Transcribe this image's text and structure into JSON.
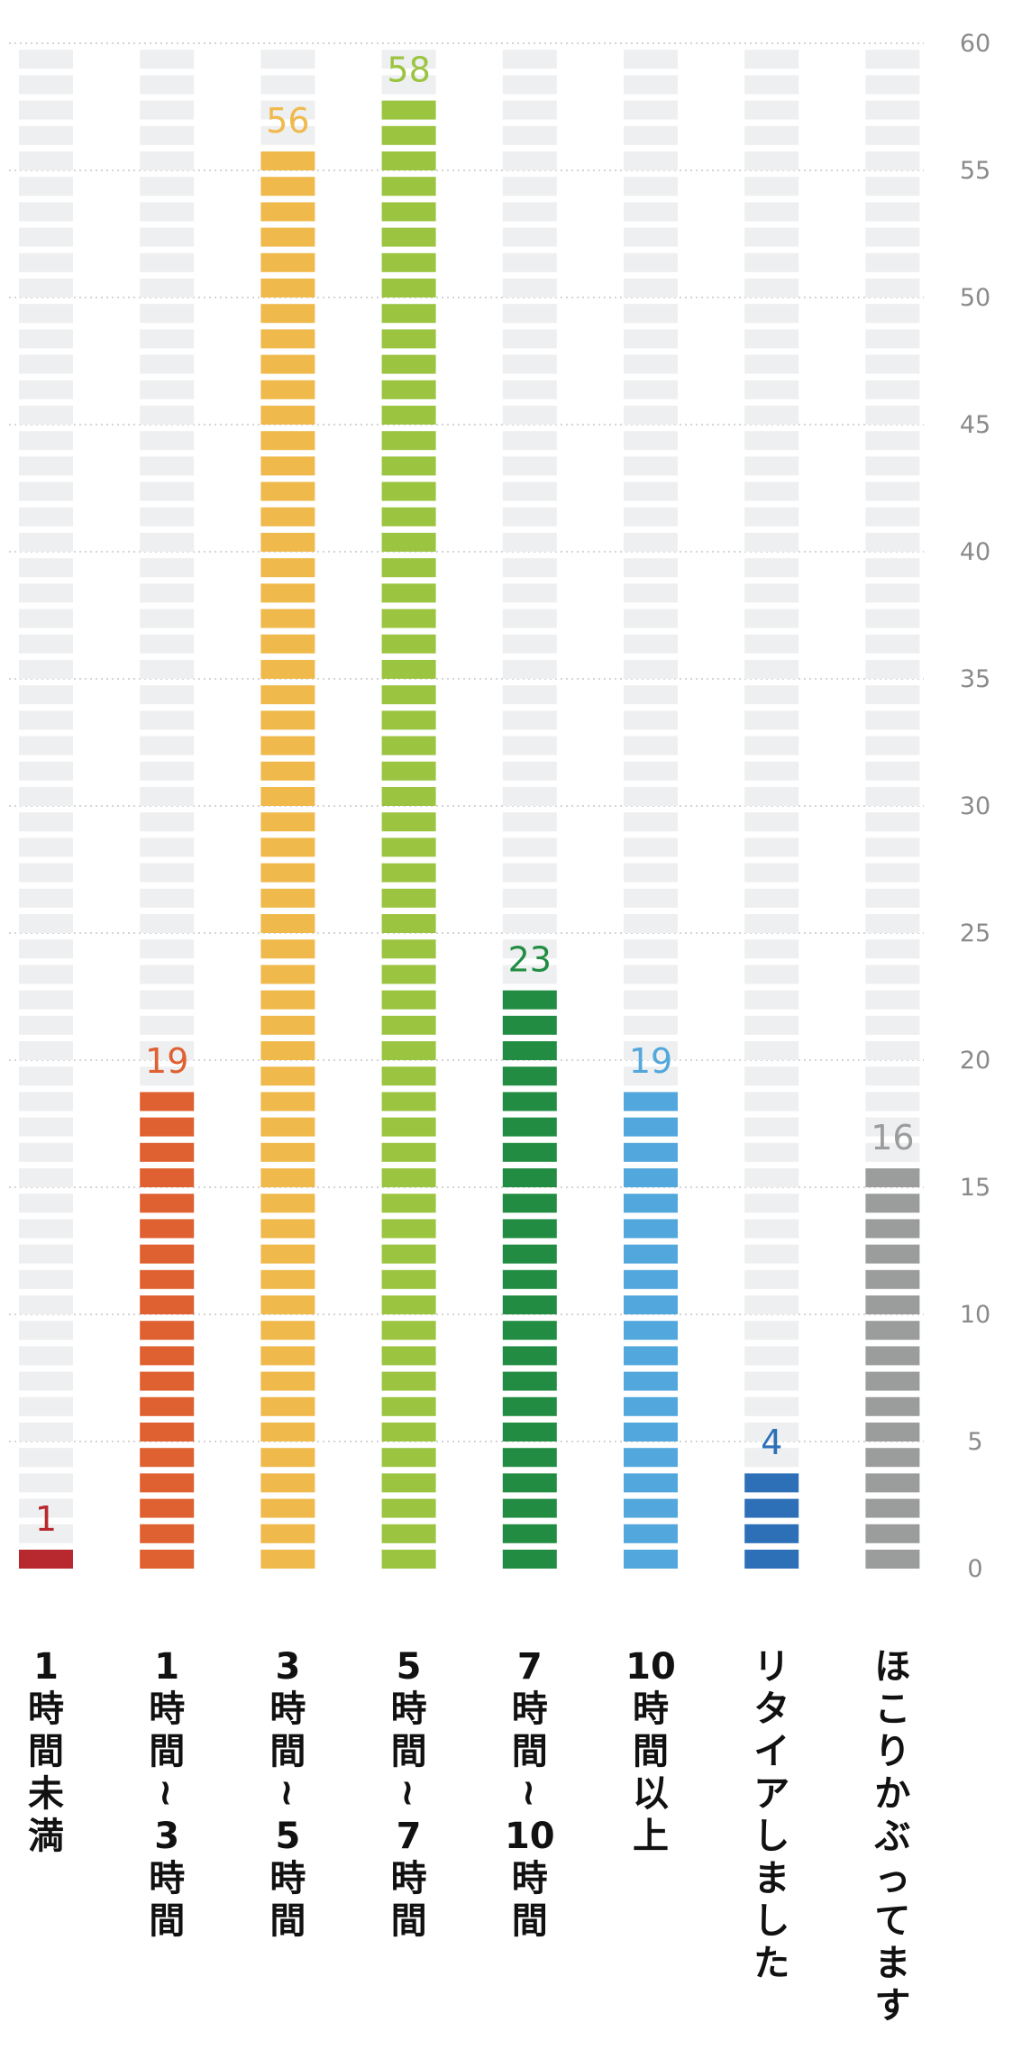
{
  "chart_data": {
    "type": "bar",
    "categories": [
      "1時間未満",
      "1時間〜3時間",
      "3時間〜5時間",
      "5時間〜7時間",
      "7時間〜10時間",
      "10時間以上",
      "リタイアしました",
      "ほこりかぶってます"
    ],
    "category_lines": [
      [
        "1",
        "時",
        "間",
        "未",
        "満"
      ],
      [
        "1",
        "時",
        "間",
        "〜",
        "3",
        "時",
        "間"
      ],
      [
        "3",
        "時",
        "間",
        "〜",
        "5",
        "時",
        "間"
      ],
      [
        "5",
        "時",
        "間",
        "〜",
        "7",
        "時",
        "間"
      ],
      [
        "7",
        "時",
        "間",
        "〜",
        "10",
        "時",
        "間"
      ],
      [
        "10",
        "時",
        "間",
        "以",
        "上"
      ],
      [
        "リ",
        "タ",
        "イ",
        "ア",
        "し",
        "ま",
        "し",
        "た"
      ],
      [
        "ほ",
        "こ",
        "り",
        "か",
        "ぶ",
        "っ",
        "て",
        "ま",
        "す"
      ]
    ],
    "values": [
      1,
      19,
      56,
      58,
      23,
      19,
      4,
      16
    ],
    "colors": [
      "#b8292f",
      "#df6030",
      "#f0b94b",
      "#9bc440",
      "#228d42",
      "#52a7dc",
      "#2d70b8",
      "#9b9c9c"
    ],
    "ylim": [
      0,
      60
    ],
    "yticks": [
      0,
      5,
      10,
      15,
      20,
      25,
      30,
      35,
      40,
      45,
      50,
      55,
      60
    ],
    "grid": true,
    "title": "",
    "xlabel": "",
    "ylabel": ""
  },
  "colors": {
    "empty_segment": "#eeeff0",
    "tick_text": "#8a8a8a",
    "gridline": "#d4d4d4",
    "category_text": "#111111"
  }
}
